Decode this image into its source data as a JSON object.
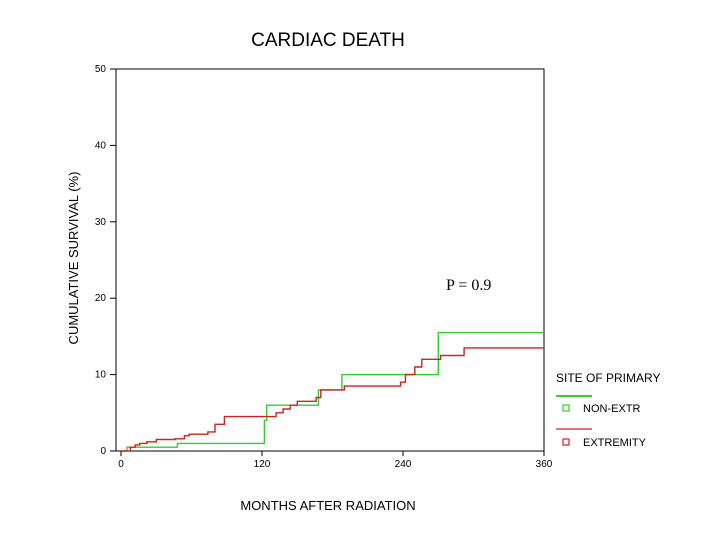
{
  "chart_data": {
    "type": "line",
    "title": "CARDIAC DEATH",
    "xlabel": "MONTHS AFTER RADIATION",
    "ylabel": "CUMULATIVE SURVIVAL (%)",
    "xlim": [
      0,
      360
    ],
    "ylim": [
      0,
      50
    ],
    "x_ticks": [
      0,
      120,
      240,
      360
    ],
    "y_ticks": [
      0,
      10,
      20,
      30,
      40,
      50
    ],
    "annotation": "P = 0.9",
    "legend": {
      "title": "SITE OF PRIMARY",
      "position": "right"
    },
    "series": [
      {
        "name": "NON-EXTR",
        "color": "#33cc33",
        "step": true,
        "x": [
          0,
          5,
          48,
          120,
          122,
          124,
          168,
          188,
          270,
          360
        ],
        "y": [
          0,
          0.5,
          1,
          1,
          4,
          6,
          8,
          10,
          15.5,
          15.5
        ]
      },
      {
        "name": "EXTREMITY",
        "color": "#cc2222",
        "step": true,
        "x": [
          0,
          8,
          12,
          16,
          22,
          30,
          46,
          54,
          58,
          74,
          80,
          88,
          126,
          132,
          138,
          144,
          150,
          166,
          170,
          190,
          238,
          242,
          250,
          256,
          272,
          292,
          360
        ],
        "y": [
          0,
          0.5,
          0.8,
          1,
          1.2,
          1.5,
          1.6,
          2,
          2.2,
          2.5,
          3.5,
          4.5,
          4.5,
          5,
          5.5,
          6,
          6.5,
          7,
          8,
          8.5,
          9,
          10,
          11,
          12,
          12.5,
          13.5,
          13.5
        ]
      }
    ]
  }
}
